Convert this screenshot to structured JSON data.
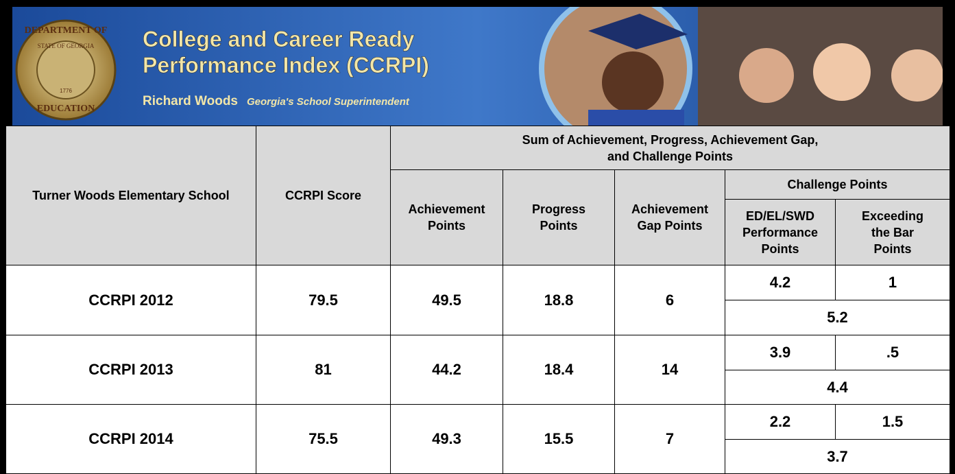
{
  "banner": {
    "title_lines": [
      "College and Career Ready",
      "Performance Index (CCRPI)"
    ],
    "name": "Richard Woods",
    "role": "Georgia's School Superintendent",
    "seal_top": "DEPARTMENT OF",
    "seal_ring": "STATE OF GEORGIA",
    "seal_bottom": "EDUCATION",
    "seal_year": "1776"
  },
  "table": {
    "header": {
      "school": "Turner Woods Elementary School",
      "score": "CCRPI Score",
      "sum": [
        "Sum of Achievement, Progress, Achievement Gap,",
        "and Challenge Points"
      ],
      "achievement": [
        "Achievement",
        "Points"
      ],
      "progress": [
        "Progress",
        "Points"
      ],
      "gap": [
        "Achievement",
        "Gap Points"
      ],
      "challenge": "Challenge Points",
      "ed": [
        "ED/EL/SWD",
        "Performance",
        "Points"
      ],
      "exceeding": [
        "Exceeding",
        "the Bar",
        "Points"
      ]
    },
    "rows": [
      {
        "label": "CCRPI 2012",
        "score": "79.5",
        "achievement": "49.5",
        "progress": "18.8",
        "gap": "6",
        "ed": "4.2",
        "exceeding": "1",
        "challenge_total": "5.2"
      },
      {
        "label": "CCRPI 2013",
        "score": "81",
        "achievement": "44.2",
        "progress": "18.4",
        "gap": "14",
        "ed": "3.9",
        "exceeding": ".5",
        "challenge_total": "4.4"
      },
      {
        "label": "CCRPI 2014",
        "score": "75.5",
        "achievement": "49.3",
        "progress": "15.5",
        "gap": "7",
        "ed": "2.2",
        "exceeding": "1.5",
        "challenge_total": "3.7"
      }
    ]
  }
}
